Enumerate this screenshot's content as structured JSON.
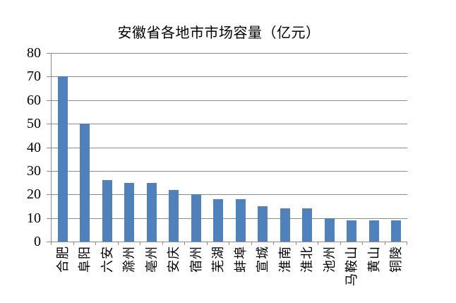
{
  "chart_data": {
    "type": "bar",
    "title": "安徽省各地市市场容量（亿元）",
    "categories": [
      "合肥",
      "阜阳",
      "六安",
      "滁州",
      "亳州",
      "安庆",
      "宿州",
      "芜湖",
      "蚌埠",
      "宣城",
      "淮南",
      "淮北",
      "池州",
      "马鞍山",
      "黄山",
      "铜陵"
    ],
    "values": [
      70,
      50,
      26,
      25,
      25,
      22,
      20,
      18,
      18,
      15,
      14,
      14,
      10,
      9,
      9,
      9
    ],
    "xlabel": "",
    "ylabel": "",
    "ylim": [
      0,
      80
    ],
    "yticks": [
      0,
      10,
      20,
      30,
      40,
      50,
      60,
      70,
      80
    ],
    "grid": true,
    "legend": false,
    "colors": {
      "bar": "#4F81BD",
      "gridline": "#8C8C8C",
      "axis": "#8C8C8C",
      "text": "#000000",
      "background": "#FFFFFF"
    }
  }
}
